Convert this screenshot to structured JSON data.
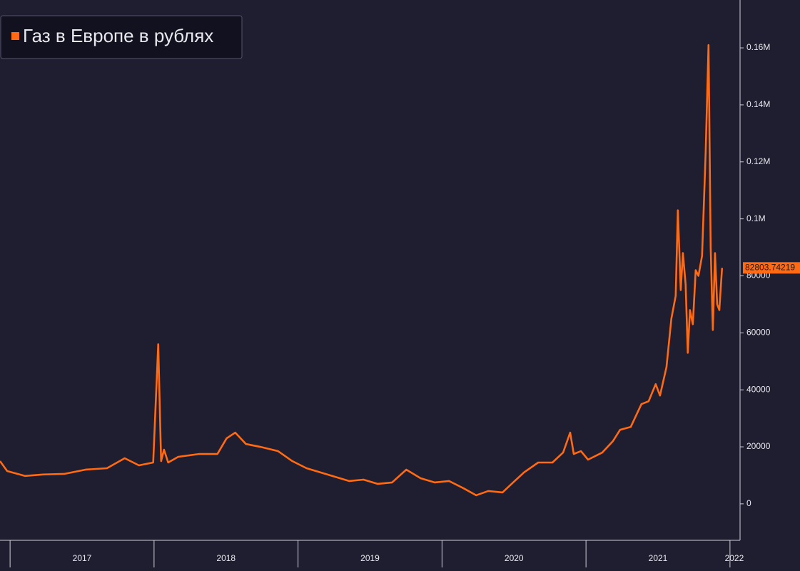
{
  "chart_data": {
    "type": "line",
    "x": [
      2016.93,
      2016.98,
      2017.103,
      2017.227,
      2017.376,
      2017.524,
      2017.673,
      2017.796,
      2017.895,
      2017.994,
      2018.029,
      2018.049,
      2018.069,
      2018.098,
      2018.168,
      2018.316,
      2018.44,
      2018.504,
      2018.564,
      2018.638,
      2018.737,
      2018.861,
      2018.96,
      2019.059,
      2019.158,
      2019.257,
      2019.356,
      2019.455,
      2019.554,
      2019.653,
      2019.752,
      2019.851,
      2019.95,
      2020.049,
      2020.148,
      2020.237,
      2020.321,
      2020.42,
      2020.494,
      2020.569,
      2020.668,
      2020.767,
      2020.841,
      2020.89,
      2020.915,
      2020.965,
      2021.014,
      2021.113,
      2021.187,
      2021.237,
      2021.311,
      2021.385,
      2021.435,
      2021.484,
      2021.514,
      2021.559,
      2021.593,
      2021.623,
      2021.638,
      2021.658,
      2021.673,
      2021.692,
      2021.707,
      2021.722,
      2021.742,
      2021.762,
      2021.781,
      2021.806,
      2021.831,
      2021.851,
      2021.866,
      2021.881,
      2021.896,
      2021.911,
      2021.926,
      2021.945
    ],
    "series": [
      {
        "name": "Газ в Европе в рублях",
        "color": "#ff6a13",
        "values": [
          15000,
          11500,
          9800,
          10300,
          10500,
          12000,
          12500,
          16000,
          13500,
          14500,
          56000,
          15000,
          19000,
          14500,
          16500,
          17500,
          17500,
          23000,
          25000,
          21000,
          20000,
          18500,
          15000,
          12500,
          11000,
          9500,
          8000,
          8500,
          7000,
          7500,
          12000,
          9000,
          7500,
          8000,
          5500,
          3000,
          4500,
          4000,
          7500,
          11000,
          14500,
          14500,
          18000,
          25000,
          17500,
          18500,
          15500,
          18000,
          22000,
          26000,
          27000,
          35000,
          36000,
          42000,
          38000,
          48000,
          65000,
          73000,
          103000,
          75000,
          88000,
          77000,
          53000,
          68000,
          63000,
          82000,
          80000,
          87000,
          123000,
          161000,
          90000,
          61000,
          88000,
          70000,
          68000,
          82803.74219
        ]
      }
    ],
    "xlim": [
      2016.93,
      2022.07
    ],
    "xticks": [
      {
        "value": 2017.5,
        "label": "2017"
      },
      {
        "value": 2018.5,
        "label": "2018"
      },
      {
        "value": 2019.5,
        "label": "2019"
      },
      {
        "value": 2020.5,
        "label": "2020"
      },
      {
        "value": 2021.5,
        "label": "2021"
      },
      {
        "value": 2022.03,
        "label": "2022"
      }
    ],
    "ylim": [
      -12800,
      176800
    ],
    "yticks": [
      0,
      20000,
      40000,
      60000,
      80000,
      {
        "value": 100000,
        "label": "0.1M"
      },
      {
        "value": 120000,
        "label": "0.12M"
      },
      {
        "value": 140000,
        "label": "0.14M"
      },
      {
        "value": 160000,
        "label": "0.16M"
      }
    ],
    "legend": "top-left"
  }
}
